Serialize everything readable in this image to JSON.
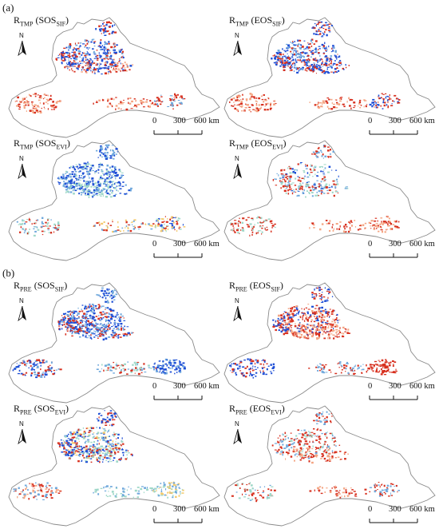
{
  "parts": [
    {
      "label": "(a)",
      "panels": [
        {
          "var": "R",
          "var_sub": "TMP",
          "metric": "SOS",
          "metric_sub": "SIF",
          "mode": "tmp_sos_sif"
        },
        {
          "var": "R",
          "var_sub": "TMP",
          "metric": "EOS",
          "metric_sub": "SIF",
          "mode": "tmp_eos_sif"
        },
        {
          "var": "R",
          "var_sub": "TMP",
          "metric": "SOS",
          "metric_sub": "EVI",
          "mode": "tmp_sos_evi"
        },
        {
          "var": "R",
          "var_sub": "TMP",
          "metric": "EOS",
          "metric_sub": "EVI",
          "mode": "tmp_eos_evi"
        }
      ]
    },
    {
      "label": "(b)",
      "panels": [
        {
          "var": "R",
          "var_sub": "PRE",
          "metric": "SOS",
          "metric_sub": "SIF",
          "mode": "pre_sos_sif"
        },
        {
          "var": "R",
          "var_sub": "PRE",
          "metric": "EOS",
          "metric_sub": "SIF",
          "mode": "pre_eos_sif"
        },
        {
          "var": "R",
          "var_sub": "PRE",
          "metric": "SOS",
          "metric_sub": "EVI",
          "mode": "pre_sos_evi"
        },
        {
          "var": "R",
          "var_sub": "PRE",
          "metric": "EOS",
          "metric_sub": "EVI",
          "mode": "pre_eos_evi"
        }
      ]
    }
  ],
  "north_label": "N",
  "scale_bar": {
    "ticks": [
      "0",
      "300",
      "600 km"
    ]
  },
  "colors": {
    "outline": "#8a8a8a",
    "positive_strong": "#d7301f",
    "positive_weak": "#f4a582",
    "negative_strong": "#1f4fd6",
    "negative_weak": "#6fa8dc",
    "near_zero": "#9fd8c8",
    "mid": "#f3c96b"
  }
}
